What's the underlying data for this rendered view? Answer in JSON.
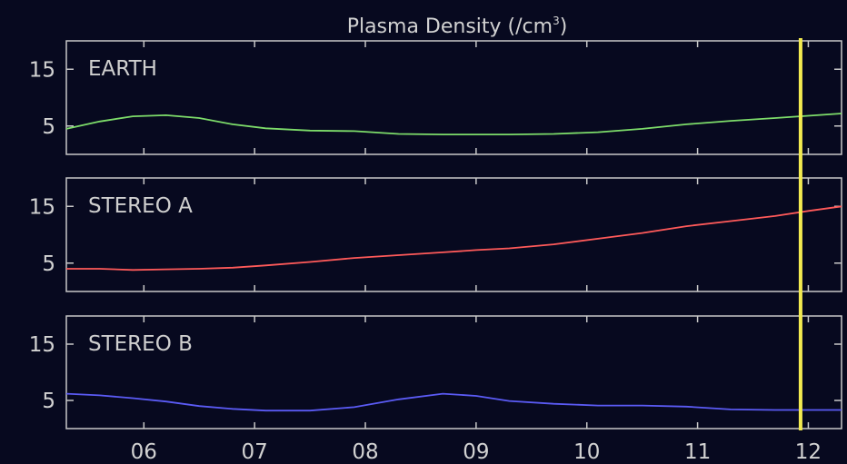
{
  "chart_data": {
    "type": "line",
    "title": "Plasma Density (/cm",
    "title_superscript": "3",
    "title_suffix": ")",
    "xlim": [
      5.3,
      12.3
    ],
    "x_ticks": [
      6,
      7,
      8,
      9,
      10,
      11,
      12
    ],
    "x_tick_labels": [
      "06",
      "07",
      "08",
      "09",
      "10",
      "11",
      "12"
    ],
    "ylim": [
      0,
      20
    ],
    "y_ticks": [
      5,
      15
    ],
    "y_tick_labels": [
      "5",
      "15"
    ],
    "marker_x": 11.93,
    "marker_color": "#f2ea50",
    "panels": [
      {
        "label": "EARTH",
        "color": "#7ddc6a",
        "x": [
          5.3,
          5.6,
          5.9,
          6.2,
          6.5,
          6.8,
          7.1,
          7.5,
          7.9,
          8.3,
          8.7,
          9.0,
          9.3,
          9.7,
          10.1,
          10.5,
          10.9,
          11.3,
          11.7,
          12.0,
          12.3
        ],
        "y": [
          4.5,
          5.8,
          6.7,
          6.9,
          6.4,
          5.3,
          4.6,
          4.2,
          4.1,
          3.6,
          3.5,
          3.5,
          3.5,
          3.6,
          3.9,
          4.5,
          5.3,
          5.9,
          6.4,
          6.8,
          7.2
        ]
      },
      {
        "label": "STEREO A",
        "color": "#ff5a5a",
        "x": [
          5.3,
          5.6,
          5.9,
          6.2,
          6.5,
          6.8,
          7.1,
          7.5,
          7.9,
          8.3,
          8.7,
          9.0,
          9.3,
          9.7,
          10.1,
          10.5,
          10.9,
          11.3,
          11.7,
          12.0,
          12.3
        ],
        "y": [
          4.0,
          4.0,
          3.8,
          3.9,
          4.0,
          4.2,
          4.6,
          5.2,
          5.9,
          6.4,
          6.9,
          7.3,
          7.6,
          8.3,
          9.3,
          10.3,
          11.5,
          12.4,
          13.3,
          14.2,
          15.0
        ]
      },
      {
        "label": "STEREO B",
        "color": "#5b5bf5",
        "x": [
          5.3,
          5.6,
          5.9,
          6.2,
          6.5,
          6.8,
          7.1,
          7.5,
          7.9,
          8.3,
          8.7,
          9.0,
          9.3,
          9.7,
          10.1,
          10.5,
          10.9,
          11.3,
          11.7,
          12.0,
          12.3
        ],
        "y": [
          6.2,
          5.9,
          5.4,
          4.8,
          4.0,
          3.5,
          3.2,
          3.2,
          3.8,
          5.2,
          6.2,
          5.8,
          4.9,
          4.4,
          4.1,
          4.1,
          3.9,
          3.4,
          3.3,
          3.3,
          3.3
        ]
      }
    ]
  }
}
